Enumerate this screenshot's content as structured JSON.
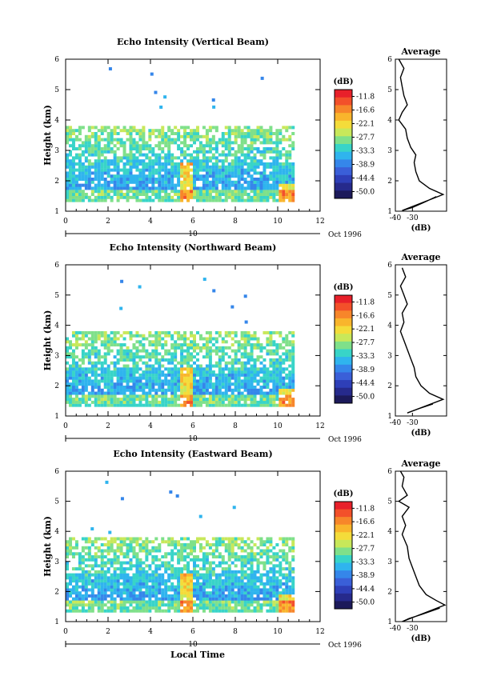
{
  "colorbar": {
    "unit": "(dB)",
    "ticks": [
      "-11.8",
      "-16.6",
      "-22.1",
      "-27.7",
      "-33.3",
      "-38.9",
      "-44.4",
      "-50.0"
    ],
    "colors": [
      "#e8202a",
      "#f3502a",
      "#f7862a",
      "#f9b52c",
      "#f4dc3a",
      "#c8e85a",
      "#7fe08a",
      "#38d4c8",
      "#2fb4ee",
      "#3586ea",
      "#3a5fd8",
      "#2e3fb8",
      "#262a8c",
      "#1c1a5a"
    ]
  },
  "chart_data": [
    {
      "type": "heatmap",
      "title": "Echo Intensity (Vertical Beam)",
      "xlabel": "",
      "ylabel": "Height (km)",
      "xlim": [
        0,
        12
      ],
      "ylim": [
        1,
        6
      ],
      "xticks": [
        "0",
        "2",
        "4",
        "6",
        "8",
        "10",
        "12"
      ],
      "yticks": [
        "1",
        "2",
        "3",
        "4",
        "5",
        "6"
      ],
      "date_axis": {
        "day": "10",
        "month_year": "Oct 1996"
      },
      "profile": {
        "title": "Average",
        "xlabel": "(dB)",
        "xlim": [
          -40,
          -10
        ],
        "xticks": [
          "-40",
          "-30"
        ],
        "yticks": [
          "1",
          "2",
          "3",
          "4",
          "5",
          "6"
        ],
        "points": [
          [
            -16,
            1.48
          ],
          [
            -22,
            1.32
          ],
          [
            -30,
            1.12
          ],
          [
            -36,
            1.02
          ],
          [
            -12,
            1.55
          ],
          [
            -20,
            1.75
          ],
          [
            -26,
            2.0
          ],
          [
            -28,
            2.3
          ],
          [
            -29,
            2.6
          ],
          [
            -28,
            2.85
          ],
          [
            -31,
            3.1
          ],
          [
            -33,
            3.4
          ],
          [
            -34,
            3.7
          ],
          [
            -38,
            4.0
          ],
          [
            -36,
            4.25
          ],
          [
            -33,
            4.5
          ],
          [
            -35,
            4.8
          ],
          [
            -36,
            5.1
          ],
          [
            -37,
            5.4
          ],
          [
            -35,
            5.7
          ],
          [
            -38,
            6.0
          ]
        ]
      }
    },
    {
      "type": "heatmap",
      "title": "Echo Intensity (Northward Beam)",
      "xlabel": "",
      "ylabel": "Height (km)",
      "xlim": [
        0,
        12
      ],
      "ylim": [
        1,
        6
      ],
      "xticks": [
        "0",
        "2",
        "4",
        "6",
        "8",
        "10",
        "12"
      ],
      "yticks": [
        "1",
        "2",
        "3",
        "4",
        "5",
        "6"
      ],
      "date_axis": {
        "day": "10",
        "month_year": "Oct 1996"
      },
      "profile": {
        "title": "Average",
        "xlabel": "(dB)",
        "xlim": [
          -40,
          -10
        ],
        "xticks": [
          "-40",
          "-30"
        ],
        "yticks": [
          "1",
          "2",
          "3",
          "4",
          "5",
          "6"
        ],
        "points": [
          [
            -18,
            1.4
          ],
          [
            -26,
            1.25
          ],
          [
            -33,
            1.1
          ],
          [
            -12,
            1.55
          ],
          [
            -20,
            1.75
          ],
          [
            -25,
            2.0
          ],
          [
            -28,
            2.3
          ],
          [
            -29,
            2.6
          ],
          [
            -31,
            2.9
          ],
          [
            -33,
            3.2
          ],
          [
            -35,
            3.5
          ],
          [
            -37,
            3.8
          ],
          [
            -35,
            4.1
          ],
          [
            -36,
            4.4
          ],
          [
            -33,
            4.7
          ],
          [
            -35,
            5.0
          ],
          [
            -37,
            5.3
          ],
          [
            -34,
            5.6
          ],
          [
            -36,
            5.9
          ]
        ]
      }
    },
    {
      "type": "heatmap",
      "title": "Echo Intensity (Eastward Beam)",
      "xlabel": "Local Time",
      "ylabel": "Height (km)",
      "xlim": [
        0,
        12
      ],
      "ylim": [
        1,
        6
      ],
      "xticks": [
        "0",
        "2",
        "4",
        "6",
        "8",
        "10",
        "12"
      ],
      "yticks": [
        "1",
        "2",
        "3",
        "4",
        "5",
        "6"
      ],
      "date_axis": {
        "day": "10",
        "month_year": "Oct 1996"
      },
      "profile": {
        "title": "Average",
        "xlabel": "(dB)",
        "xlim": [
          -40,
          -10
        ],
        "xticks": [
          "-40",
          "-30"
        ],
        "yticks": [
          "1",
          "2",
          "3",
          "4",
          "5",
          "6"
        ],
        "points": [
          [
            -14,
            1.45
          ],
          [
            -24,
            1.25
          ],
          [
            -32,
            1.1
          ],
          [
            -36,
            1.0
          ],
          [
            -11,
            1.55
          ],
          [
            -16,
            1.7
          ],
          [
            -22,
            1.9
          ],
          [
            -26,
            2.2
          ],
          [
            -28,
            2.5
          ],
          [
            -30,
            2.8
          ],
          [
            -32,
            3.1
          ],
          [
            -33,
            3.5
          ],
          [
            -36,
            3.9
          ],
          [
            -34,
            4.2
          ],
          [
            -36,
            4.5
          ],
          [
            -32,
            4.8
          ],
          [
            -38,
            5.0
          ],
          [
            -33,
            5.2
          ],
          [
            -36,
            5.5
          ],
          [
            -35,
            5.8
          ],
          [
            -37,
            6.0
          ]
        ]
      }
    }
  ]
}
